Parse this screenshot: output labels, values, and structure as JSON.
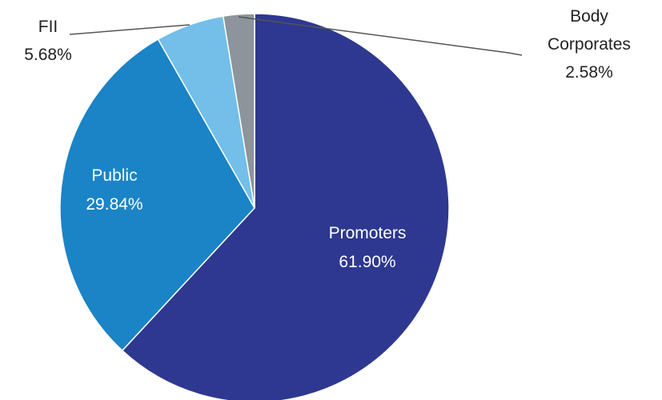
{
  "chart_data": {
    "type": "pie",
    "title": "",
    "slices": [
      {
        "label": "Promoters",
        "value": 61.9,
        "display": "61.90%",
        "color": "#2e3890",
        "label_color": "#ffffff"
      },
      {
        "label": "Public",
        "value": 29.84,
        "display": "29.84%",
        "color": "#1a84c7",
        "label_color": "#ffffff"
      },
      {
        "label": "FII",
        "value": 5.68,
        "display": "5.68%",
        "color": "#73bfe9",
        "label_color": "#222222"
      },
      {
        "label": "Body Corporates",
        "label_lines": [
          "Body",
          "Corporates"
        ],
        "value": 2.58,
        "display": "2.58%",
        "color": "#8d949b",
        "label_color": "#222222"
      }
    ],
    "start_angle": "12 o'clock",
    "direction": "clockwise",
    "legend": "none",
    "leader_line_color": "#555555"
  }
}
